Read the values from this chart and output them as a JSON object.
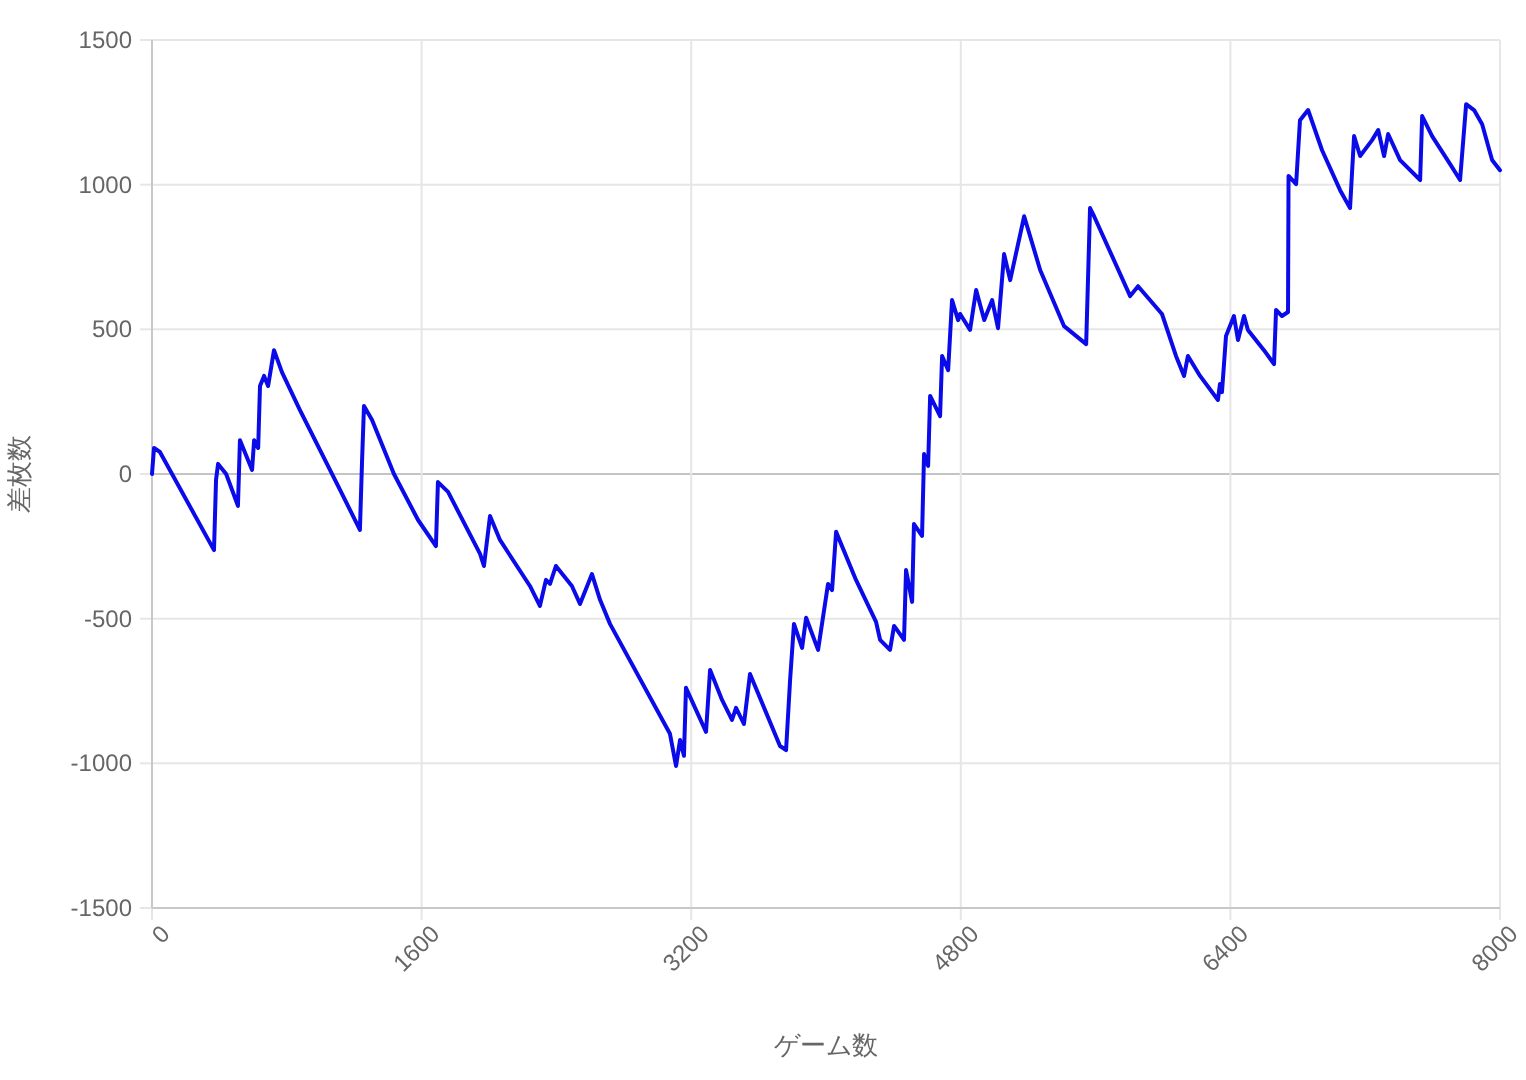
{
  "chart_data": {
    "type": "line",
    "xlabel": "ゲーム数",
    "ylabel": "差枚数",
    "xlim": [
      0,
      8000
    ],
    "xticks": [
      0,
      1600,
      3200,
      4800,
      6400,
      8000
    ],
    "ylim": [
      -1500,
      1500
    ],
    "yticks": [
      -1500,
      -1000,
      -500,
      0,
      500,
      1000,
      1500
    ],
    "grid": true,
    "marker": "none",
    "line_style": "solid",
    "series": [
      {
        "color": "#0b0bea",
        "x": [
          0,
          12,
          47,
          368,
          380,
          392,
          440,
          510,
          522,
          594,
          606,
          630,
          641,
          665,
          689,
          724,
          771,
          878,
          1116,
          1234,
          1246,
          1258,
          1306,
          1436,
          1579,
          1685,
          1697,
          1757,
          1947,
          1970,
          2006,
          2065,
          2243,
          2302,
          2338,
          2362,
          2397,
          2492,
          2540,
          2611,
          2659,
          2718,
          3074,
          3110,
          3134,
          3157,
          3169,
          3288,
          3312,
          3383,
          3442,
          3466,
          3513,
          3549,
          3727,
          3763,
          3787,
          3810,
          3858,
          3882,
          3953,
          4012,
          4036,
          4060,
          4178,
          4297,
          4321,
          4380,
          4404,
          4463,
          4475,
          4511,
          4522,
          4570,
          4582,
          4606,
          4618,
          4677,
          4689,
          4725,
          4748,
          4784,
          4796,
          4855,
          4891,
          4939,
          4986,
          5021,
          5057,
          5093,
          5176,
          5271,
          5413,
          5544,
          5567,
          5591,
          5805,
          5852,
          5994,
          6077,
          6125,
          6148,
          6220,
          6326,
          6338,
          6350,
          6374,
          6421,
          6445,
          6481,
          6504,
          6599,
          6659,
          6671,
          6706,
          6742,
          6745,
          6790,
          6813,
          6861,
          6944,
          7051,
          7110,
          7134,
          7170,
          7241,
          7277,
          7312,
          7336,
          7407,
          7526,
          7538,
          7597,
          7704,
          7763,
          7799,
          7846,
          7894,
          7953,
          8000
        ],
        "values": [
          0,
          90,
          76,
          -263,
          -20,
          35,
          0,
          -110,
          117,
          14,
          117,
          90,
          304,
          339,
          304,
          428,
          352,
          221,
          -55,
          -193,
          35,
          235,
          187,
          0,
          -159,
          -249,
          -28,
          -62,
          -276,
          -318,
          -145,
          -228,
          -387,
          -456,
          -366,
          -380,
          -318,
          -387,
          -449,
          -346,
          -435,
          -518,
          -898,
          -1009,
          -919,
          -974,
          -739,
          -891,
          -677,
          -781,
          -850,
          -808,
          -864,
          -691,
          -940,
          -954,
          -712,
          -518,
          -601,
          -497,
          -608,
          -380,
          -401,
          -200,
          -366,
          -511,
          -573,
          -608,
          -525,
          -573,
          -332,
          -442,
          -173,
          -214,
          69,
          28,
          270,
          200,
          408,
          359,
          601,
          532,
          553,
          498,
          636,
          532,
          601,
          504,
          760,
          670,
          891,
          705,
          511,
          449,
          919,
          891,
          615,
          649,
          553,
          408,
          339,
          408,
          339,
          256,
          311,
          283,
          477,
          546,
          463,
          546,
          498,
          428,
          380,
          567,
          546,
          560,
          1030,
          1002,
          1223,
          1258,
          1119,
          981,
          919,
          1168,
          1099,
          1154,
          1189,
          1099,
          1175,
          1085,
          1016,
          1237,
          1168,
          1071,
          1016,
          1278,
          1258,
          1209,
          1085,
          1050
        ]
      }
    ]
  }
}
